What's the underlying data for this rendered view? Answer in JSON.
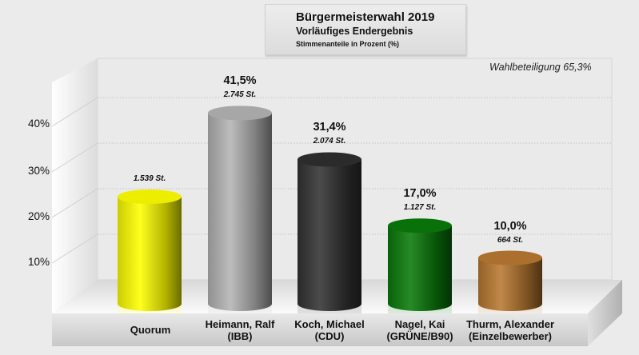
{
  "chart_data": {
    "type": "bar",
    "title": "Bürgermeisterwahl 2019",
    "subtitle": "Vorläufiges Endergebnis",
    "ylabel": "Stimmenanteile in Prozent (%)",
    "annotation": "Wahlbeteiligung 65,3%",
    "ylim": [
      0,
      48
    ],
    "yticks": [
      10,
      20,
      30,
      40
    ],
    "ytick_labels": [
      "10%",
      "20%",
      "30%",
      "40%"
    ],
    "grid": true,
    "categories": [
      {
        "line1": "Quorum",
        "line2": ""
      },
      {
        "line1": "Heimann, Ralf",
        "line2": "(IBB)"
      },
      {
        "line1": "Koch, Michael",
        "line2": "(CDU)"
      },
      {
        "line1": "Nagel, Kai",
        "line2": "(GRÜNE/B90)"
      },
      {
        "line1": "Thurm, Alexander",
        "line2": "(Einzelbewerber)"
      }
    ],
    "values": [
      23.3,
      41.5,
      31.4,
      17.0,
      10.0
    ],
    "value_labels": [
      "",
      "41,5%",
      "31,4%",
      "17,0%",
      "10,0%"
    ],
    "vote_labels": [
      "1.539 St.",
      "2.745 St.",
      "2.074 St.",
      "1.127 St.",
      "664 St."
    ],
    "colors": [
      "#ffff00",
      "#b4b4b4",
      "#333333",
      "#0a7a0a",
      "#b87830"
    ]
  }
}
